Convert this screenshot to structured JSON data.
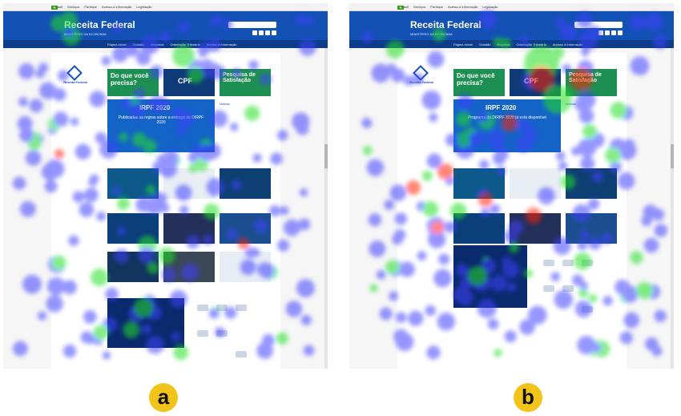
{
  "panels": [
    {
      "id": "a",
      "gov_items": [
        "Brasil",
        "Serviços",
        "Participe",
        "Acesso à informação",
        "Legislação"
      ],
      "brand": "Receita Federal",
      "ministry": "MINISTÉRIO DA ECONOMIA",
      "nav_items": [
        "Página inicial",
        "Cidadão",
        "Empresa",
        "Orientação Tributária",
        "Acesso à Informação"
      ],
      "sidebar_logo": "Receita Federal",
      "tiles": [
        "Do que você precisa?",
        "CPF",
        "Pesquisa de Satisfação"
      ],
      "banner_title": "IRPF 2020",
      "banner_text": "Publicadas as regras sobre a entrega da DIRPF 2020",
      "news_heading": "Notícias"
    },
    {
      "id": "b",
      "gov_items": [
        "Brasil",
        "Serviços",
        "Participe",
        "Acesso à informação",
        "Legislação"
      ],
      "brand": "Receita Federal",
      "ministry": "MINISTÉRIO DA ECONOMIA",
      "nav_items": [
        "Página inicial",
        "Cidadão",
        "Empresa",
        "Orientação Tributária",
        "Acesso à Informação"
      ],
      "sidebar_logo": "Receita Federal",
      "tiles": [
        "Do que você precisa?",
        "CPF",
        "Pesquisa de Satisfação"
      ],
      "banner_title": "IRPF 2020",
      "banner_text": "Programa da DIRPF 2020 já está disponível",
      "news_heading": "Notícias"
    }
  ],
  "labels": [
    "a",
    "b"
  ],
  "colors": {
    "header_blue": "#1351b4",
    "badge_yellow": "#f2c318",
    "heat_low": "#4040ff",
    "heat_mid": "#20e020",
    "heat_high": "#ff2000"
  }
}
